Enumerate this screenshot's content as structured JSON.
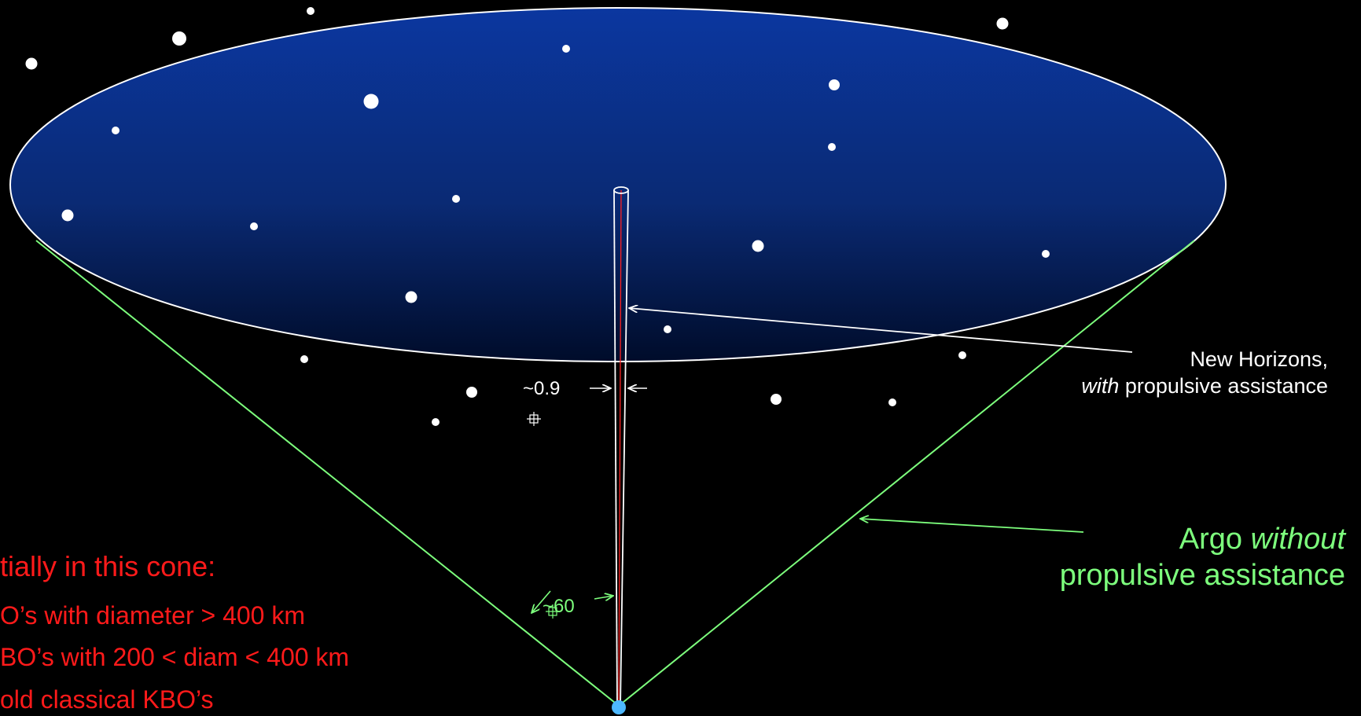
{
  "annotations": {
    "new_horizons": {
      "line1": "New Horizons,",
      "line2_italic": "with",
      "line2_rest": " propulsive assistance",
      "color": "#ffffff"
    },
    "argo": {
      "line1_plain": "Argo ",
      "line1_italic": "without",
      "line2": "propulsive assistance",
      "color": "#7dff7d"
    },
    "narrow_angle": {
      "text": "~0.9",
      "color": "#ffffff"
    },
    "wide_angle": {
      "text": "~60",
      "color": "#7dff7d"
    }
  },
  "cone_contents": {
    "title": "tially in this cone:",
    "items": [
      "O’s with diameter > 400 km",
      "BO’s with 200 < diam < 400 km",
      "old classical KBO’s"
    ],
    "color": "#ff1a1a"
  },
  "colors": {
    "background": "#000000",
    "ellipse_top": "#0a1a4a",
    "ellipse_mid": "#0a2f8a",
    "ellipse_outline": "#ffffff",
    "cone_lines": "#7dff7d",
    "beam_outline": "#ffffff",
    "beam_axis": "#ff2020",
    "origin_dot": "#4db8ff",
    "stars": "#ffffff"
  }
}
